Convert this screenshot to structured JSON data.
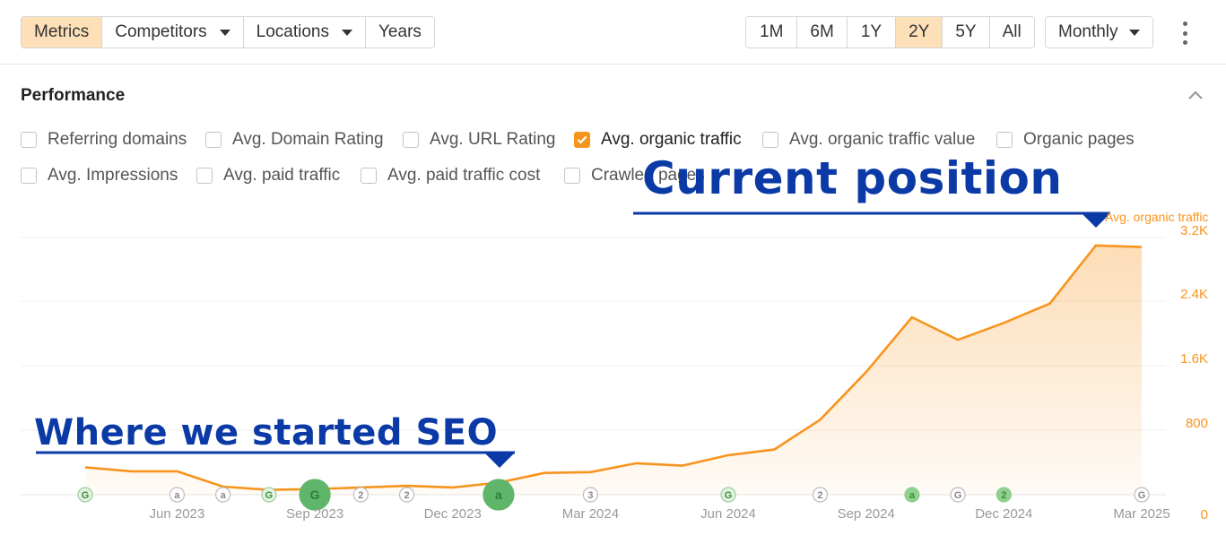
{
  "toolbar": {
    "tabs": [
      {
        "label": "Metrics",
        "active": true
      },
      {
        "label": "Competitors",
        "dropdown": true
      },
      {
        "label": "Locations",
        "dropdown": true
      },
      {
        "label": "Years"
      }
    ],
    "ranges": [
      {
        "label": "1M"
      },
      {
        "label": "6M"
      },
      {
        "label": "1Y"
      },
      {
        "label": "2Y",
        "active": true
      },
      {
        "label": "5Y"
      },
      {
        "label": "All"
      }
    ],
    "interval": "Monthly"
  },
  "performance": {
    "title": "Performance",
    "metrics_row1": [
      {
        "label": "Referring domains",
        "checked": false
      },
      {
        "label": "Avg. Domain Rating",
        "checked": false
      },
      {
        "label": "Avg. URL Rating",
        "checked": false
      },
      {
        "label": "Avg. organic traffic",
        "checked": true
      },
      {
        "label": "Avg. organic traffic value",
        "checked": false
      },
      {
        "label": "Organic pages",
        "checked": false
      }
    ],
    "metrics_row2": [
      {
        "label": "Avg. Impressions",
        "checked": false
      },
      {
        "label": "Avg. paid traffic",
        "checked": false
      },
      {
        "label": "Avg. paid traffic cost",
        "checked": false
      },
      {
        "label": "Crawled pages",
        "checked": false
      }
    ]
  },
  "annotations": {
    "current": "Current position",
    "start": "Where we started SEO",
    "color": "#0b3aa6"
  },
  "colors": {
    "series": "#f7941d",
    "active_bg": "#fddfb8"
  },
  "chart_data": {
    "type": "area",
    "title": "",
    "series_label": "Avg. organic traffic",
    "xlabel": "",
    "ylabel": "",
    "ylim": [
      0,
      3200
    ],
    "yticks": [
      "0",
      "800",
      "1.6K",
      "2.4K",
      "3.2K"
    ],
    "xticks": [
      "Jun 2023",
      "Sep 2023",
      "Dec 2023",
      "Mar 2024",
      "Jun 2024",
      "Sep 2024",
      "Dec 2024",
      "Mar 2025"
    ],
    "x": [
      "Apr 2023",
      "May 2023",
      "Jun 2023",
      "Jul 2023",
      "Aug 2023",
      "Sep 2023",
      "Oct 2023",
      "Nov 2023",
      "Dec 2023",
      "Jan 2024",
      "Feb 2024",
      "Mar 2024",
      "Apr 2024",
      "May 2024",
      "Jun 2024",
      "Jul 2024",
      "Aug 2024",
      "Sep 2024",
      "Oct 2024",
      "Nov 2024",
      "Dec 2024",
      "Jan 2025",
      "Feb 2025",
      "Mar 2025"
    ],
    "series": [
      {
        "values": [
          340,
          290,
          290,
          100,
          60,
          70,
          90,
          110,
          90,
          150,
          270,
          280,
          390,
          360,
          490,
          560,
          930,
          1520,
          2200,
          1920,
          2130,
          2370,
          3100,
          3080
        ]
      }
    ],
    "event_markers": [
      {
        "x": "Apr 2023",
        "label": "G",
        "kind": "google"
      },
      {
        "x": "Jun 2023",
        "label": "a",
        "kind": "ahrefs"
      },
      {
        "x": "Jul 2023",
        "label": "a",
        "kind": "ahrefs"
      },
      {
        "x": "Aug 2023",
        "label": "G",
        "kind": "google"
      },
      {
        "x": "Sep 2023",
        "label": "G",
        "kind": "google-big"
      },
      {
        "x": "Oct 2023",
        "label": "2",
        "kind": "count"
      },
      {
        "x": "Nov 2023",
        "label": "2",
        "kind": "count"
      },
      {
        "x": "Jan 2024",
        "label": "a",
        "kind": "ahrefs-big"
      },
      {
        "x": "Mar 2024",
        "label": "3",
        "kind": "count"
      },
      {
        "x": "Jun 2024",
        "label": "G",
        "kind": "google"
      },
      {
        "x": "Aug 2024",
        "label": "2",
        "kind": "count"
      },
      {
        "x": "Oct 2024",
        "label": "a",
        "kind": "ahrefs-green"
      },
      {
        "x": "Nov 2024",
        "label": "G",
        "kind": "google-gray"
      },
      {
        "x": "Dec 2024",
        "label": "2",
        "kind": "count-green"
      },
      {
        "x": "Mar 2025",
        "label": "G",
        "kind": "google-gray"
      }
    ]
  }
}
